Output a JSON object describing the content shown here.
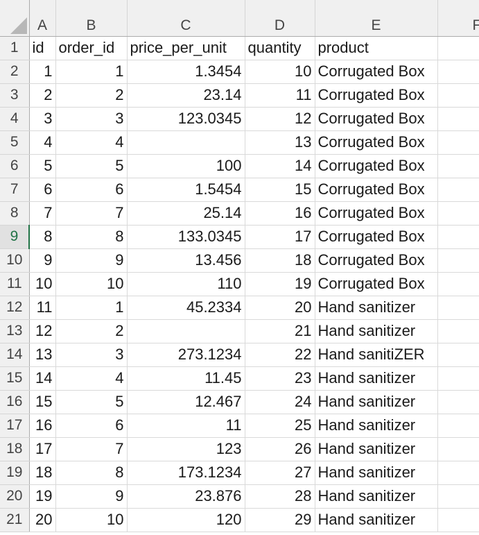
{
  "sheet": {
    "column_headers": [
      "A",
      "B",
      "C",
      "D",
      "E",
      "F"
    ],
    "selected_row": "9",
    "rows": [
      {
        "row": "1",
        "a": "id",
        "b": "order_id",
        "c": "price_per_unit",
        "d": "quantity",
        "e": "product"
      },
      {
        "row": "2",
        "a": "1",
        "b": "1",
        "c": "1.3454",
        "d": "10",
        "e": "Corrugated Box"
      },
      {
        "row": "3",
        "a": "2",
        "b": "2",
        "c": "23.14",
        "d": "11",
        "e": "Corrugated Box"
      },
      {
        "row": "4",
        "a": "3",
        "b": "3",
        "c": "123.0345",
        "d": "12",
        "e": "Corrugated Box"
      },
      {
        "row": "5",
        "a": "4",
        "b": "4",
        "c": "",
        "d": "13",
        "e": "Corrugated Box"
      },
      {
        "row": "6",
        "a": "5",
        "b": "5",
        "c": "100",
        "d": "14",
        "e": "Corrugated Box"
      },
      {
        "row": "7",
        "a": "6",
        "b": "6",
        "c": "1.5454",
        "d": "15",
        "e": "Corrugated Box"
      },
      {
        "row": "8",
        "a": "7",
        "b": "7",
        "c": "25.14",
        "d": "16",
        "e": "Corrugated Box"
      },
      {
        "row": "9",
        "a": "8",
        "b": "8",
        "c": "133.0345",
        "d": "17",
        "e": "Corrugated Box"
      },
      {
        "row": "10",
        "a": "9",
        "b": "9",
        "c": "13.456",
        "d": "18",
        "e": "Corrugated Box"
      },
      {
        "row": "11",
        "a": "10",
        "b": "10",
        "c": "110",
        "d": "19",
        "e": "Corrugated Box"
      },
      {
        "row": "12",
        "a": "11",
        "b": "1",
        "c": "45.2334",
        "d": "20",
        "e": "Hand sanitizer"
      },
      {
        "row": "13",
        "a": "12",
        "b": "2",
        "c": "",
        "d": "21",
        "e": "Hand sanitizer"
      },
      {
        "row": "14",
        "a": "13",
        "b": "3",
        "c": "273.1234",
        "d": "22",
        "e": "Hand sanitiZER"
      },
      {
        "row": "15",
        "a": "14",
        "b": "4",
        "c": "11.45",
        "d": "23",
        "e": "Hand sanitizer"
      },
      {
        "row": "16",
        "a": "15",
        "b": "5",
        "c": "12.467",
        "d": "24",
        "e": "Hand sanitizer"
      },
      {
        "row": "17",
        "a": "16",
        "b": "6",
        "c": "11",
        "d": "25",
        "e": "Hand sanitizer"
      },
      {
        "row": "18",
        "a": "17",
        "b": "7",
        "c": "123",
        "d": "26",
        "e": "Hand sanitizer"
      },
      {
        "row": "19",
        "a": "18",
        "b": "8",
        "c": "173.1234",
        "d": "27",
        "e": "Hand sanitizer"
      },
      {
        "row": "20",
        "a": "19",
        "b": "9",
        "c": "23.876",
        "d": "28",
        "e": "Hand sanitizer"
      },
      {
        "row": "21",
        "a": "20",
        "b": "10",
        "c": "120",
        "d": "29",
        "e": "Hand sanitizer"
      }
    ]
  },
  "colors": {
    "header_bg": "#f0f0f0",
    "selected_accent": "#217346",
    "gridline": "#d9d9d9"
  },
  "icons": {
    "corner": "select-all-triangle-icon"
  }
}
